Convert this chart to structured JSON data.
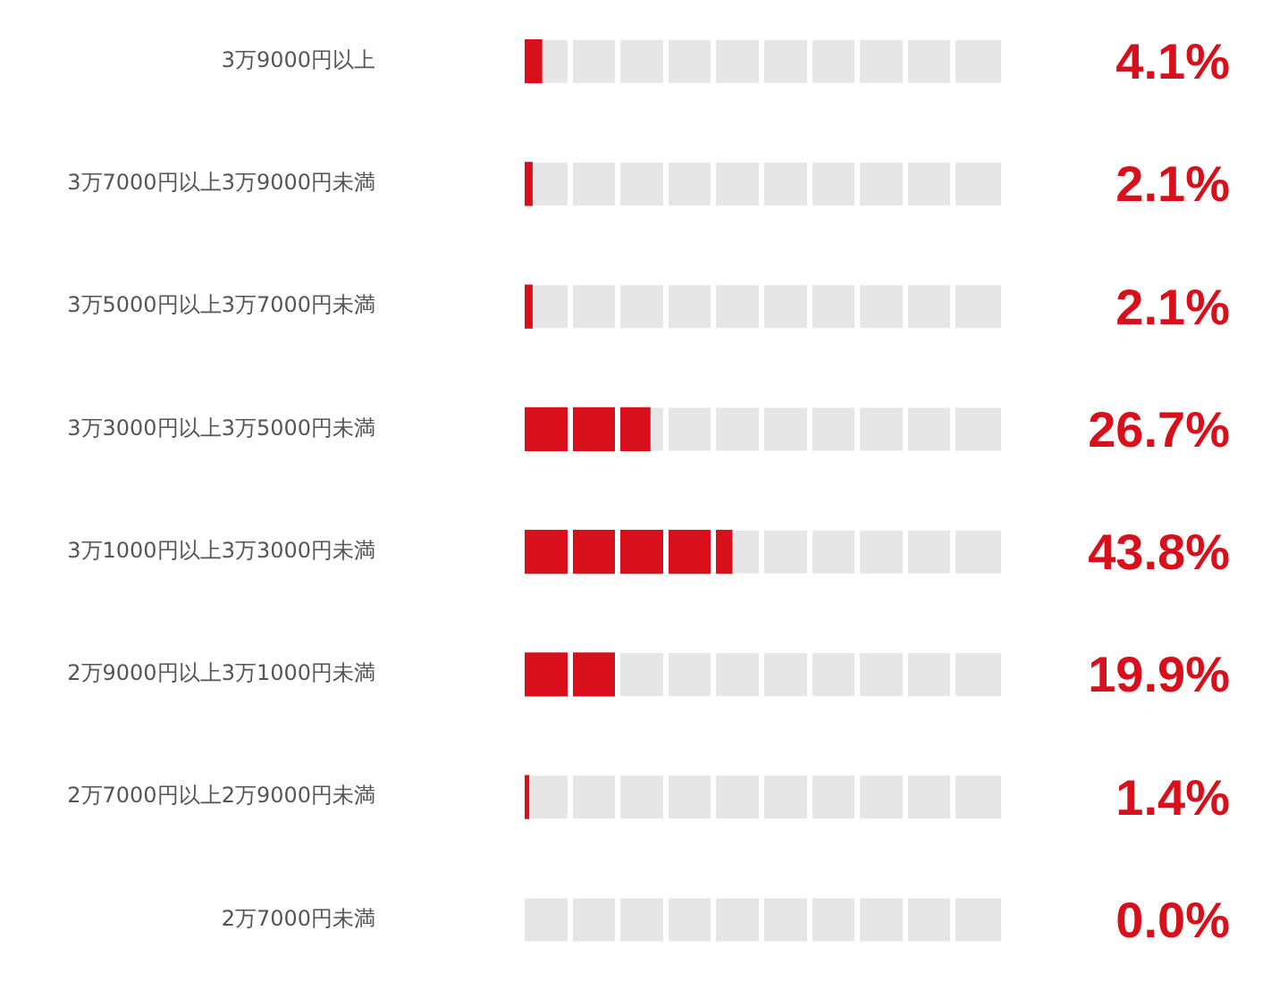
{
  "chart_data": {
    "type": "bar",
    "orientation": "horizontal",
    "categories": [
      "3万9000円以上",
      "3万7000円以上3万9000円未満",
      "3万5000円以上3万7000円未満",
      "3万3000円以上3万5000円未満",
      "3万1000円以上3万3000円未満",
      "2万9000円以上3万1000円未満",
      "2万7000円以上2万9000円未満",
      "2万7000円未満"
    ],
    "values": [
      4.1,
      2.1,
      2.1,
      26.7,
      43.8,
      19.9,
      1.4,
      0.0
    ],
    "value_labels": [
      "4.1%",
      "2.1%",
      "2.1%",
      "26.7%",
      "43.8%",
      "19.9%",
      "1.4%",
      "0.0%"
    ],
    "color": "#d7101c",
    "xlim": [
      0,
      100
    ],
    "xticks": [
      {
        "value": 0,
        "label": null
      },
      {
        "value": 10,
        "label": null
      },
      {
        "value": 20,
        "label": null
      },
      {
        "value": 30,
        "label": null
      },
      {
        "value": 40,
        "label": null
      },
      {
        "value": 50,
        "label": null
      },
      {
        "value": 60,
        "label": null
      },
      {
        "value": 70,
        "label": null
      },
      {
        "value": 80,
        "label": null
      },
      {
        "value": 90,
        "label": null
      }
    ],
    "grid": "x",
    "tick_labels": "y",
    "legend": false
  }
}
